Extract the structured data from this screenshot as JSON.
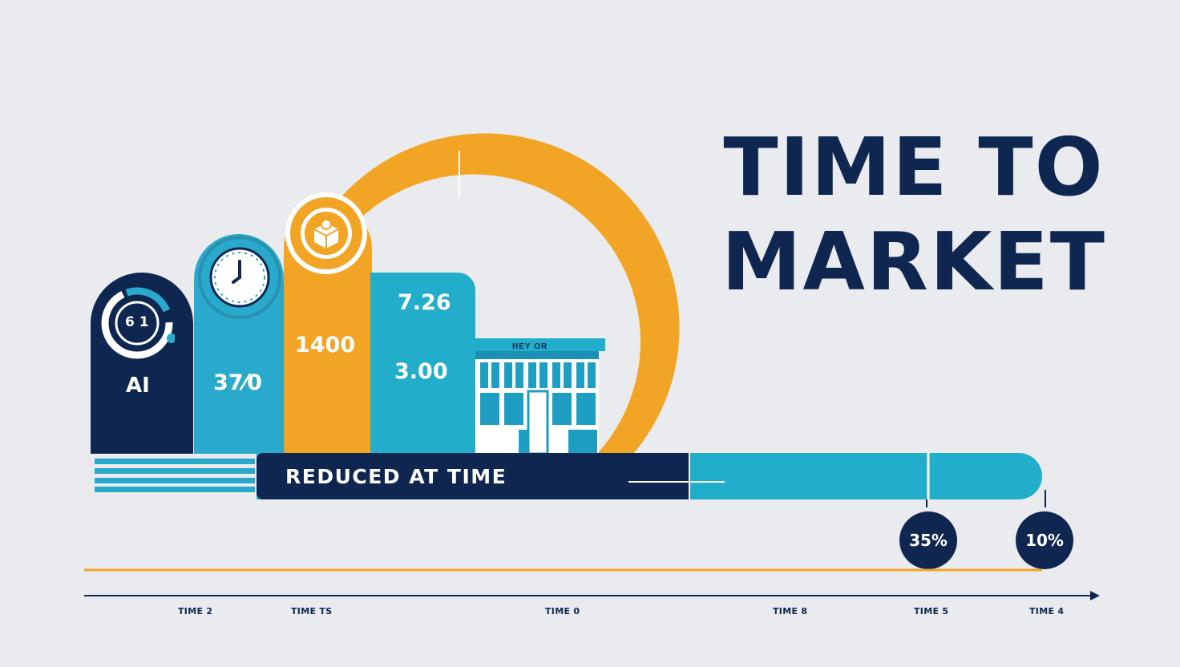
{
  "headline": {
    "line1": "TIME TO",
    "line2": "MARKET"
  },
  "bars": [
    {
      "label": "AI",
      "icon": "gauge-icon",
      "icon_text": "6 1",
      "color": "#0f2750"
    },
    {
      "label": "37⁄0",
      "icon": "clock-icon",
      "color": "#29a9cc"
    },
    {
      "label": "1400",
      "icon": "box-icon",
      "color": "#f2a524"
    },
    {
      "label_top": "7.26",
      "label": "3.00",
      "color": "#22aecb"
    }
  ],
  "building": {
    "sign": "HEY OR",
    "icon": "storefront-icon"
  },
  "timeline": {
    "label": "REDUCED AT TIME",
    "markers": [
      {
        "value": "35%"
      },
      {
        "value": "10%"
      }
    ]
  },
  "axis": {
    "ticks": [
      "TIME 2",
      "TIME TS",
      "TIME 0",
      "TIME 8",
      "TIME 5",
      "TIME 4"
    ]
  },
  "colors": {
    "navy": "#0f2750",
    "teal": "#22aecb",
    "orange": "#f2a524",
    "background": "#e9ebee"
  }
}
